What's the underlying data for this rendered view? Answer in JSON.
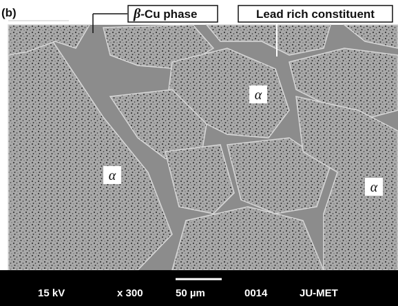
{
  "panel_label": "(b)",
  "beta_label": {
    "symbol": "β",
    "text": "-Cu phase"
  },
  "lead_label": "Lead rich constituent",
  "alpha_labels": [
    "α",
    "α",
    "α"
  ],
  "info_bar": {
    "voltage": "15 kV",
    "magnification": "x 300",
    "scale": "50 µm",
    "image_number": "0014",
    "lab": "JU-MET"
  }
}
